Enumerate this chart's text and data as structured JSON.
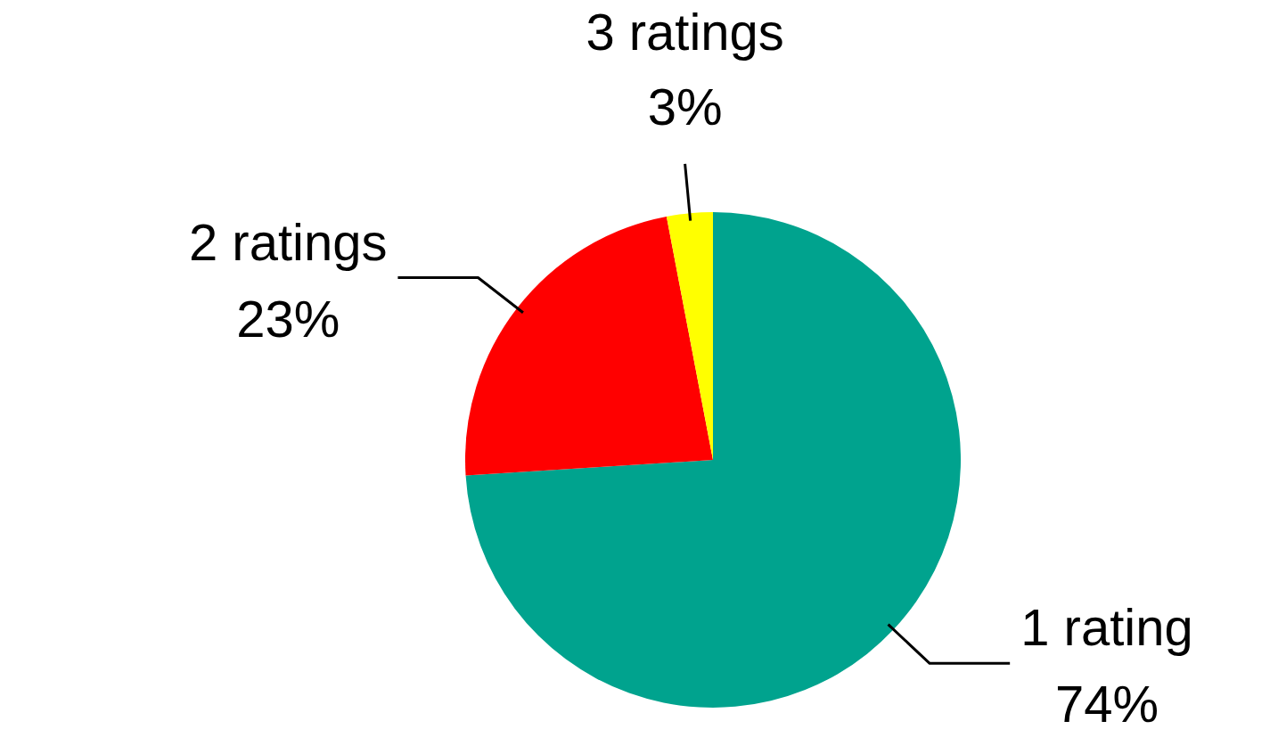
{
  "chart_data": {
    "type": "pie",
    "categories": [
      "1 rating",
      "2 ratings",
      "3 ratings"
    ],
    "values": [
      74,
      23,
      3
    ],
    "colors": [
      "#00a38e",
      "#ff0000",
      "#ffff00"
    ],
    "value_labels": [
      "74%",
      "23%",
      "3%"
    ],
    "legend": false
  }
}
